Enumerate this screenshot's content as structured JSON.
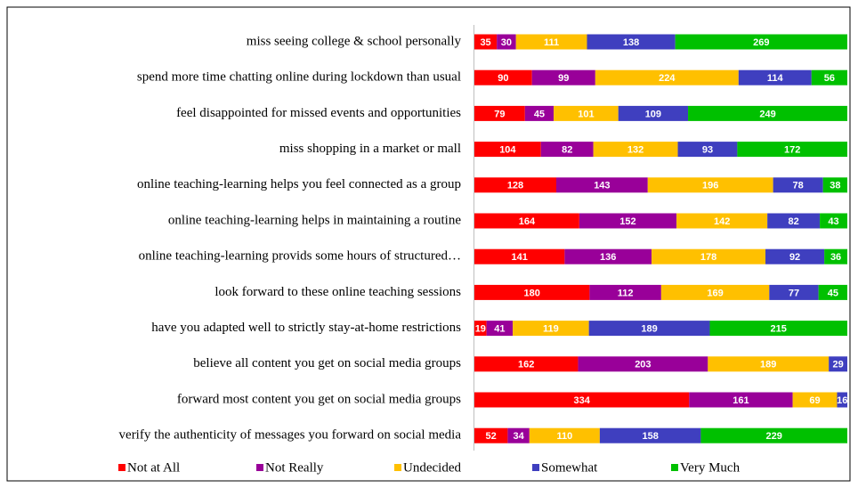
{
  "chart_data": {
    "type": "stacked_bar_100",
    "categories": [
      "miss seeing college & school personally",
      "spend more time chatting online during lockdown than usual",
      "feel disappointed for missed events and opportunities",
      "miss shopping in a market or mall",
      "online teaching-learning helps you feel connected as a group",
      "online teaching-learning helps in maintaining a routine",
      "online teaching-learning provids some hours of structured…",
      "look forward to these online teaching sessions",
      "have you adapted well to strictly stay-at-home restrictions",
      "believe all content you get on social media groups",
      "forward most content you get on social media groups",
      "verify the authenticity of messages you forward on social media"
    ],
    "series": [
      {
        "name": "Not at All",
        "color": "#ff0000",
        "values": [
          35,
          90,
          79,
          104,
          128,
          164,
          141,
          180,
          19,
          162,
          334,
          52
        ]
      },
      {
        "name": "Not Really",
        "color": "#990099",
        "values": [
          30,
          99,
          45,
          82,
          143,
          152,
          136,
          112,
          41,
          203,
          161,
          34
        ]
      },
      {
        "name": "Undecided",
        "color": "#ffc000",
        "values": [
          111,
          224,
          101,
          132,
          196,
          142,
          178,
          169,
          119,
          189,
          69,
          110
        ]
      },
      {
        "name": "Somewhat",
        "color": "#3f3fbf",
        "values": [
          138,
          114,
          109,
          93,
          78,
          82,
          92,
          77,
          189,
          29,
          16,
          158
        ]
      },
      {
        "name": "Very Much",
        "color": "#00c000",
        "values": [
          269,
          56,
          249,
          172,
          38,
          43,
          36,
          45,
          215,
          null,
          null,
          229
        ]
      }
    ]
  }
}
